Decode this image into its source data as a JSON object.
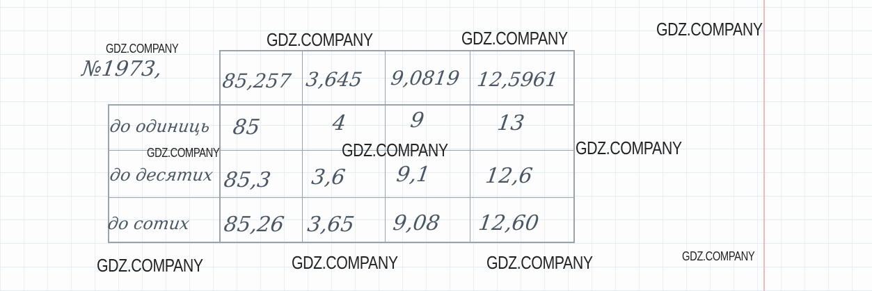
{
  "problem_number": "№1973,",
  "header_values": [
    "85,257",
    "3,645",
    "9,0819",
    "12,5961"
  ],
  "rows": [
    {
      "label": "до одиниць",
      "values": [
        "85",
        "4",
        "9",
        "13"
      ]
    },
    {
      "label": "до десятих",
      "values": [
        "85,3",
        "3,6",
        "9,1",
        "12,6"
      ]
    },
    {
      "label": "до сотих",
      "values": [
        "85,26",
        "3,65",
        "9,08",
        "12,60"
      ]
    }
  ],
  "watermark": "GDZ.COMPANY",
  "colors": {
    "ink": "#4a5663",
    "grid": "#e3ecf3",
    "margin": "#f2b8c0"
  }
}
